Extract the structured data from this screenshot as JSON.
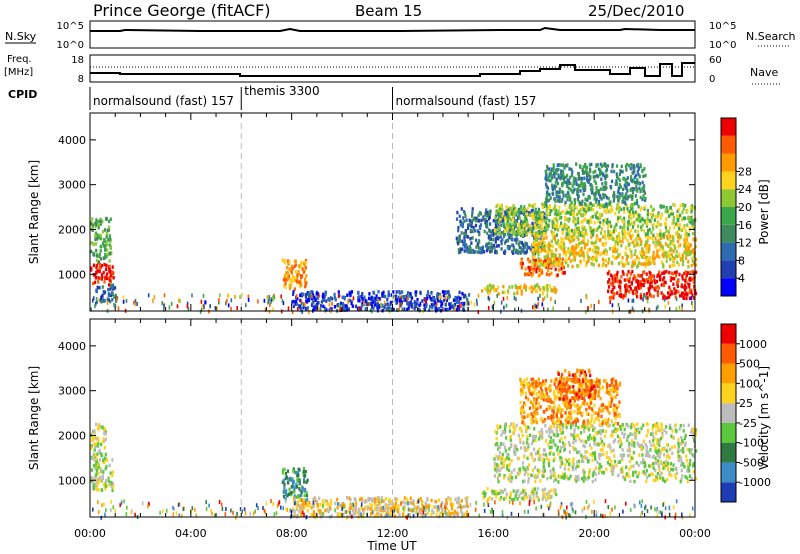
{
  "header": {
    "station": "Prince George (fitACF)",
    "beam": "Beam 15",
    "date": "25/Dec/2010"
  },
  "nsky_panel": {
    "left_label": "N.Sky",
    "left_ticks": [
      "10^5",
      "10^0"
    ],
    "right_ticks": [
      "10^5",
      "10^0"
    ],
    "right_label": "N.Search"
  },
  "freq_panel": {
    "left_label_1": "Freq.",
    "left_label_2": "[MHz]",
    "left_ticks": [
      "18",
      "8"
    ],
    "right_ticks": [
      "60",
      "0"
    ],
    "right_label": "Nave"
  },
  "cpid": {
    "label": "CPID",
    "segments": [
      {
        "text": "normalsound (fast) 157",
        "start_hour": 0
      },
      {
        "text": "themis 3300",
        "start_hour": 6
      },
      {
        "text": "normalsound (fast) 157",
        "start_hour": 12
      }
    ]
  },
  "chart_data": [
    {
      "type": "heatmap",
      "title": "",
      "ylabel": "Slant Range [km]",
      "xlabel": "",
      "xlim": [
        0,
        24
      ],
      "ylim": [
        180,
        4600
      ],
      "yticks": [
        "1000",
        "2000",
        "3000",
        "4000"
      ],
      "colorbar": {
        "label": "Power [dB]",
        "tick_labels": [
          "4",
          "8",
          "12",
          "16",
          "20",
          "24",
          "28"
        ],
        "colors": [
          "#0000ff",
          "#2040b0",
          "#2e6bb0",
          "#3f8a5e",
          "#3aa84a",
          "#8ec832",
          "#ffd21e",
          "#ff9a00",
          "#ff5a00",
          "#ee0000"
        ]
      },
      "regions": [
        {
          "x": [
            0.0,
            0.9
          ],
          "y": [
            800,
            1300
          ],
          "level": 9
        },
        {
          "x": [
            0.0,
            0.8
          ],
          "y": [
            1300,
            2300
          ],
          "level": 4
        },
        {
          "x": [
            0.2,
            1.0
          ],
          "y": [
            400,
            800
          ],
          "level": 2
        },
        {
          "x": [
            7.6,
            8.6
          ],
          "y": [
            700,
            1350
          ],
          "level": 7
        },
        {
          "x": [
            8.0,
            15.0
          ],
          "y": [
            220,
            650
          ],
          "level": 1
        },
        {
          "x": [
            14.5,
            18.0
          ],
          "y": [
            1500,
            2500
          ],
          "level": 2
        },
        {
          "x": [
            15.5,
            18.5
          ],
          "y": [
            600,
            800
          ],
          "level": 6
        },
        {
          "x": [
            17.0,
            18.8
          ],
          "y": [
            1000,
            1400
          ],
          "level": 8
        },
        {
          "x": [
            17.5,
            24.0
          ],
          "y": [
            1200,
            1900
          ],
          "level": 6
        },
        {
          "x": [
            16.0,
            24.0
          ],
          "y": [
            1900,
            2600
          ],
          "level": 5
        },
        {
          "x": [
            20.5,
            24.0
          ],
          "y": [
            500,
            1100
          ],
          "level": 9
        },
        {
          "x": [
            18.0,
            22.0
          ],
          "y": [
            2600,
            3500
          ],
          "level": 3
        }
      ]
    },
    {
      "type": "heatmap",
      "title": "",
      "ylabel": "Slant Range [km]",
      "xlabel": "Time UT",
      "xlim": [
        0,
        24
      ],
      "ylim": [
        180,
        4600
      ],
      "xticks": [
        "00:00",
        "04:00",
        "08:00",
        "12:00",
        "16:00",
        "20:00",
        "00:00"
      ],
      "yticks": [
        "1000",
        "2000",
        "3000",
        "4000"
      ],
      "colorbar": {
        "label": "Velocity [m s^-1]",
        "tick_labels": [
          "1000",
          "500",
          "100",
          "25",
          "-25",
          "-100",
          "-500",
          "-1000"
        ],
        "colors": [
          "#1e3cb4",
          "#3c8cc8",
          "#2f7a40",
          "#5ac83a",
          "#bcbcbc",
          "#ffd21e",
          "#ffa000",
          "#ff5a00",
          "#ee0000"
        ]
      },
      "regions": [
        {
          "x": [
            0.0,
            0.9
          ],
          "y": [
            800,
            1500
          ],
          "level": 4
        },
        {
          "x": [
            0.0,
            0.6
          ],
          "y": [
            1500,
            2300
          ],
          "level": 4
        },
        {
          "x": [
            7.6,
            8.6
          ],
          "y": [
            550,
            1300
          ],
          "level": 2
        },
        {
          "x": [
            8.0,
            15.0
          ],
          "y": [
            220,
            650
          ],
          "level": 5
        },
        {
          "x": [
            15.5,
            18.5
          ],
          "y": [
            600,
            850
          ],
          "level": 4
        },
        {
          "x": [
            16.0,
            24.0
          ],
          "y": [
            1000,
            2300
          ],
          "level": 4
        },
        {
          "x": [
            17.0,
            21.0
          ],
          "y": [
            2300,
            3300
          ],
          "level": 6
        },
        {
          "x": [
            18.5,
            20.0
          ],
          "y": [
            2800,
            3500
          ],
          "level": 7
        }
      ]
    }
  ]
}
